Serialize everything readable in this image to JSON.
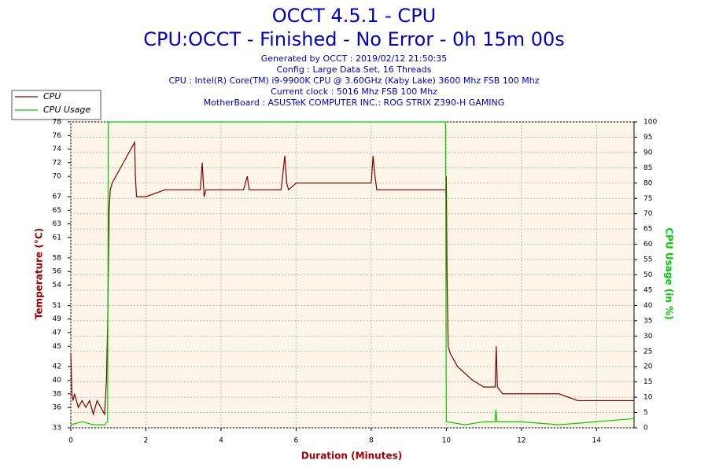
{
  "chart_data": {
    "type": "line",
    "title": "OCCT 4.5.1 - CPU",
    "subtitle": "CPU:OCCT - Finished - No Error - 0h 15m 00s",
    "info": [
      "Generated by OCCT : 2019/02/12 21:50:35",
      "Config : Large Data Set, 16 Threads",
      "CPU : Intel(R) Core(TM) i9-9900K CPU @ 3.60GHz (Kaby Lake) 3600 Mhz FSB 100 Mhz",
      "Current clock : 5016 Mhz FSB 100 Mhz",
      "MotherBoard : ASUSTeK COMPUTER INC.: ROG STRIX Z390-H GAMING"
    ],
    "x_label": "Duration (Minutes)",
    "y_label": "Temperature (°C)",
    "y2_label": "CPU Usage (in %)",
    "xlim": [
      0,
      15
    ],
    "xticks": [
      0,
      2,
      4,
      6,
      8,
      10,
      12,
      14
    ],
    "ylim": [
      33,
      78
    ],
    "yticks": [
      33,
      36,
      38,
      40,
      42,
      45,
      47,
      49,
      51,
      54,
      56,
      58,
      61,
      63,
      65,
      67,
      70,
      72,
      74,
      76,
      78
    ],
    "y2lim": [
      0,
      100
    ],
    "y2ticks": [
      0,
      5,
      10,
      15,
      20,
      25,
      30,
      35,
      40,
      45,
      50,
      55,
      60,
      65,
      70,
      75,
      80,
      85,
      90,
      95,
      100
    ],
    "grid": true,
    "series": [
      {
        "name": "CPU",
        "color": "#800000",
        "axis": "y",
        "x": [
          0,
          0.03,
          0.06,
          0.1,
          0.2,
          0.3,
          0.4,
          0.5,
          0.6,
          0.7,
          0.8,
          0.9,
          0.95,
          0.98,
          1.0,
          1.02,
          1.05,
          1.1,
          1.2,
          1.3,
          1.4,
          1.5,
          1.6,
          1.7,
          1.72,
          1.75,
          2.0,
          2.5,
          3.0,
          3.45,
          3.5,
          3.55,
          3.6,
          4.0,
          4.6,
          4.7,
          4.75,
          5.0,
          5.6,
          5.7,
          5.75,
          5.8,
          6.0,
          6.5,
          7.0,
          7.5,
          8.0,
          8.05,
          8.1,
          8.15,
          8.5,
          9.0,
          9.5,
          9.98,
          10.0,
          10.02,
          10.05,
          10.1,
          10.3,
          10.5,
          10.7,
          11.0,
          11.3,
          11.33,
          11.36,
          11.5,
          12.0,
          12.5,
          13.0,
          13.5,
          14.0,
          14.5,
          15.0
        ],
        "values": [
          44,
          38,
          37,
          38,
          36,
          37,
          36,
          37,
          35,
          37,
          36,
          35,
          40,
          48,
          56,
          65,
          68,
          69,
          70,
          71,
          72,
          73,
          74,
          75,
          70,
          67,
          67,
          68,
          68,
          68,
          72,
          67,
          68,
          68,
          68,
          70,
          68,
          68,
          68,
          73,
          69,
          68,
          69,
          69,
          69,
          69,
          69,
          73,
          70,
          68,
          68,
          68,
          68,
          68,
          70,
          55,
          45,
          44,
          42,
          41,
          40,
          39,
          39,
          45,
          39,
          38,
          38,
          38,
          38,
          37,
          37,
          37,
          37
        ]
      },
      {
        "name": "CPU Usage",
        "color": "#00cc00",
        "axis": "y2",
        "x": [
          0,
          0.3,
          0.6,
          0.9,
          0.98,
          1.0,
          9.98,
          10.0,
          10.5,
          11.0,
          11.3,
          11.32,
          11.35,
          12.0,
          13.0,
          14.0,
          15.0
        ],
        "values": [
          1,
          2,
          1,
          1,
          2,
          100,
          100,
          2,
          1,
          2,
          2,
          6,
          2,
          2,
          1,
          2,
          3
        ]
      }
    ]
  }
}
